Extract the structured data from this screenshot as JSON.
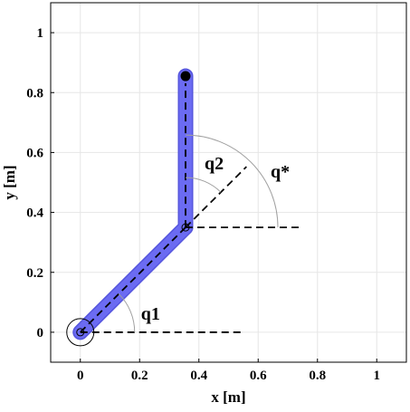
{
  "xlabel": "x [m]",
  "ylabel": "y [m]",
  "xlim": [
    -0.1,
    1.1
  ],
  "ylim": [
    -0.1,
    1.1
  ],
  "xticks": [
    "0",
    "0.2",
    "0.4",
    "0.6",
    "0.8",
    "1"
  ],
  "yticks": [
    "0",
    "0.2",
    "0.4",
    "0.6",
    "0.8",
    "1"
  ],
  "grid": true,
  "base": [
    0,
    0
  ],
  "elbow": [
    0.355,
    0.35
  ],
  "tip": [
    0.355,
    0.855
  ],
  "link_color": "#6b6bf2",
  "link_edge": "#5555dd",
  "angle_labels": {
    "q1": "q1",
    "q2": "q2",
    "qstar": "q*"
  }
}
